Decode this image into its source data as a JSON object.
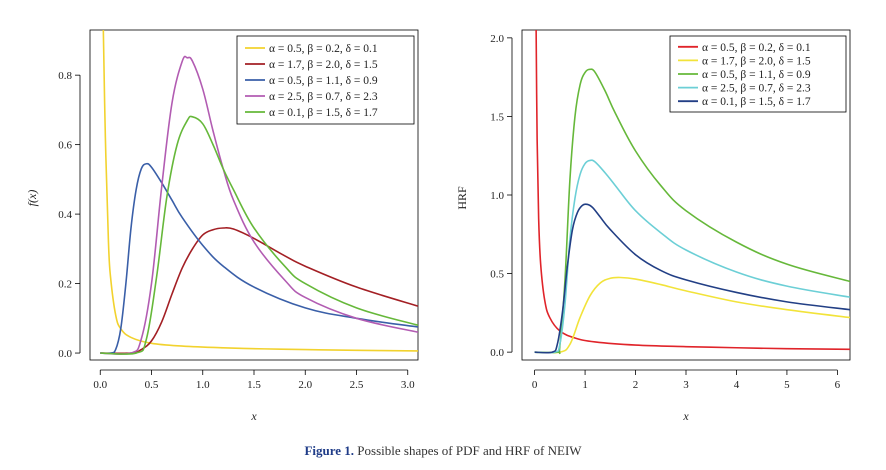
{
  "caption": {
    "figure_number": "Figure 1.",
    "text": "Possible shapes of PDF and HRF of NEIW"
  },
  "chart_data": [
    {
      "type": "line",
      "id": "pdf",
      "xlabel": "x",
      "ylabel": "f(x)",
      "xlim": [
        -0.1,
        3.1
      ],
      "ylim": [
        -0.02,
        0.93
      ],
      "xticks": [
        0.0,
        0.5,
        1.0,
        1.5,
        2.0,
        2.5,
        3.0
      ],
      "xtick_labels": [
        "0.0",
        "0.5",
        "1.0",
        "1.5",
        "2.0",
        "2.5",
        "3.0"
      ],
      "yticks": [
        0.0,
        0.2,
        0.4,
        0.6,
        0.8
      ],
      "ytick_labels": [
        "0.0",
        "0.2",
        "0.4",
        "0.6",
        "0.8"
      ],
      "legend_position": "top-right",
      "series": [
        {
          "name": "α = 0.5, β = 0.2, δ = 0.1",
          "color": "#f2d22e",
          "x": [
            0.03,
            0.05,
            0.08,
            0.1,
            0.15,
            0.2,
            0.3,
            0.5,
            0.8,
            1.2,
            1.6,
            2.0,
            2.5,
            3.1
          ],
          "y": [
            0.93,
            0.62,
            0.32,
            0.22,
            0.11,
            0.07,
            0.045,
            0.028,
            0.02,
            0.015,
            0.012,
            0.01,
            0.008,
            0.006
          ]
        },
        {
          "name": "α = 1.7, β = 2.0, δ = 1.5",
          "color": "#a31f24",
          "x": [
            0.0,
            0.3,
            0.4,
            0.5,
            0.6,
            0.7,
            0.8,
            0.9,
            1.0,
            1.1,
            1.2,
            1.3,
            1.5,
            1.8,
            2.0,
            2.5,
            3.1
          ],
          "y": [
            0.0,
            0.0,
            0.01,
            0.035,
            0.09,
            0.17,
            0.245,
            0.3,
            0.34,
            0.355,
            0.36,
            0.357,
            0.33,
            0.28,
            0.25,
            0.19,
            0.135
          ]
        },
        {
          "name": "α = 0.5, β = 1.1, δ = 0.9",
          "color": "#3a5fa8",
          "x": [
            0.0,
            0.1,
            0.15,
            0.2,
            0.25,
            0.3,
            0.35,
            0.4,
            0.45,
            0.5,
            0.6,
            0.7,
            0.8,
            1.0,
            1.2,
            1.5,
            2.0,
            2.5,
            3.1
          ],
          "y": [
            0.0,
            0.0,
            0.01,
            0.07,
            0.2,
            0.36,
            0.47,
            0.53,
            0.545,
            0.535,
            0.49,
            0.44,
            0.39,
            0.31,
            0.25,
            0.19,
            0.13,
            0.1,
            0.075
          ]
        },
        {
          "name": "α = 2.5, β = 0.7, δ = 2.3",
          "color": "#b25cb2",
          "x": [
            0.0,
            0.3,
            0.4,
            0.5,
            0.6,
            0.7,
            0.8,
            0.85,
            0.9,
            1.0,
            1.1,
            1.2,
            1.3,
            1.5,
            1.8,
            2.0,
            2.5,
            3.1
          ],
          "y": [
            0.0,
            0.0,
            0.04,
            0.2,
            0.48,
            0.72,
            0.84,
            0.85,
            0.84,
            0.76,
            0.64,
            0.53,
            0.44,
            0.32,
            0.21,
            0.16,
            0.1,
            0.06
          ]
        },
        {
          "name": "α = 0.1, β = 1.5, δ = 1.7",
          "color": "#66b83a",
          "x": [
            0.0,
            0.35,
            0.45,
            0.55,
            0.65,
            0.75,
            0.85,
            0.9,
            1.0,
            1.1,
            1.2,
            1.3,
            1.5,
            1.8,
            2.0,
            2.5,
            3.1
          ],
          "y": [
            0.0,
            0.0,
            0.04,
            0.22,
            0.45,
            0.6,
            0.67,
            0.68,
            0.66,
            0.6,
            0.53,
            0.47,
            0.36,
            0.25,
            0.2,
            0.13,
            0.08
          ]
        }
      ]
    },
    {
      "type": "line",
      "id": "hrf",
      "xlabel": "x",
      "ylabel": "HRF",
      "xlim": [
        -0.25,
        6.25
      ],
      "ylim": [
        -0.05,
        2.05
      ],
      "xticks": [
        0,
        1,
        2,
        3,
        4,
        5,
        6
      ],
      "xtick_labels": [
        "0",
        "1",
        "2",
        "3",
        "4",
        "5",
        "6"
      ],
      "yticks": [
        0.0,
        0.5,
        1.0,
        1.5,
        2.0
      ],
      "ytick_labels": [
        "0.0",
        "0.5",
        "1.0",
        "1.5",
        "2.0"
      ],
      "legend_position": "top-right",
      "series": [
        {
          "name": "α = 0.5, β = 0.2, δ = 0.1",
          "color": "#e0242a",
          "x": [
            0.03,
            0.05,
            0.08,
            0.12,
            0.2,
            0.3,
            0.5,
            0.8,
            1.2,
            2.0,
            3.0,
            4.0,
            5.0,
            6.25
          ],
          "y": [
            2.05,
            1.35,
            0.85,
            0.56,
            0.33,
            0.22,
            0.135,
            0.09,
            0.065,
            0.045,
            0.035,
            0.028,
            0.022,
            0.018
          ]
        },
        {
          "name": "α = 1.7, β = 2.0, δ = 1.5",
          "color": "#f2e33a",
          "x": [
            0.0,
            0.5,
            0.7,
            0.9,
            1.1,
            1.3,
            1.5,
            1.7,
            2.0,
            2.5,
            3.0,
            4.0,
            5.0,
            6.25
          ],
          "y": [
            0.0,
            0.0,
            0.05,
            0.22,
            0.36,
            0.44,
            0.47,
            0.475,
            0.465,
            0.43,
            0.39,
            0.32,
            0.27,
            0.22
          ]
        },
        {
          "name": "α = 0.5, β = 1.1, δ = 0.9",
          "color": "#66b83a",
          "x": [
            0.0,
            0.45,
            0.5,
            0.6,
            0.7,
            0.8,
            0.9,
            1.0,
            1.1,
            1.2,
            1.4,
            1.6,
            2.0,
            2.5,
            3.0,
            4.0,
            5.0,
            6.25
          ],
          "y": [
            0.0,
            0.0,
            0.04,
            0.45,
            1.1,
            1.5,
            1.7,
            1.78,
            1.8,
            1.78,
            1.66,
            1.52,
            1.28,
            1.06,
            0.9,
            0.7,
            0.56,
            0.45
          ]
        },
        {
          "name": "α = 2.5, β = 0.7, δ = 2.3",
          "color": "#6ccfd6",
          "x": [
            0.0,
            0.4,
            0.5,
            0.6,
            0.7,
            0.8,
            0.9,
            1.0,
            1.1,
            1.2,
            1.4,
            1.6,
            2.0,
            2.5,
            3.0,
            4.0,
            5.0,
            6.25
          ],
          "y": [
            0.0,
            0.0,
            0.05,
            0.3,
            0.72,
            0.98,
            1.13,
            1.2,
            1.22,
            1.21,
            1.14,
            1.06,
            0.9,
            0.76,
            0.65,
            0.51,
            0.42,
            0.35
          ]
        },
        {
          "name": "α = 0.1, β = 1.5, δ = 1.7",
          "color": "#223f85",
          "x": [
            0.0,
            0.35,
            0.45,
            0.55,
            0.65,
            0.75,
            0.85,
            0.95,
            1.05,
            1.15,
            1.3,
            1.5,
            2.0,
            2.5,
            3.0,
            4.0,
            5.0,
            6.25
          ],
          "y": [
            0.0,
            0.0,
            0.05,
            0.25,
            0.55,
            0.78,
            0.89,
            0.935,
            0.94,
            0.92,
            0.86,
            0.78,
            0.62,
            0.52,
            0.46,
            0.38,
            0.32,
            0.27
          ]
        }
      ]
    }
  ]
}
